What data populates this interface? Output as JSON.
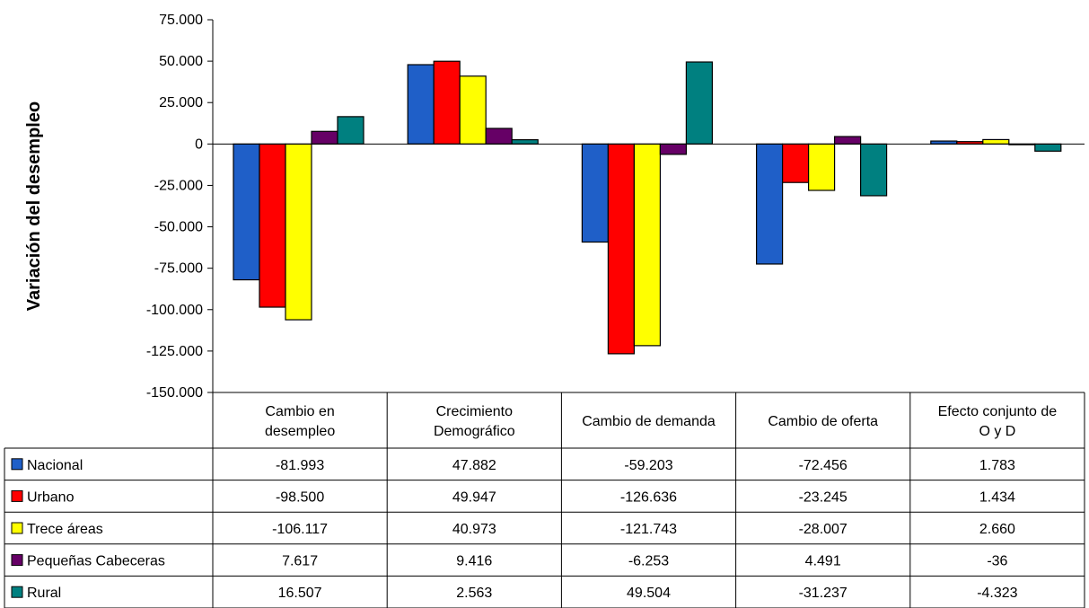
{
  "chart_data": {
    "type": "bar",
    "ylabel": "Variación del desempleo",
    "ylim": [
      -150000,
      75000
    ],
    "yticks": [
      75000,
      50000,
      25000,
      0,
      -25000,
      -50000,
      -75000,
      -100000,
      -125000,
      -150000
    ],
    "ytick_labels": [
      "75.000",
      "50.000",
      "25.000",
      "0",
      "-25.000",
      "-50.000",
      "-75.000",
      "-100.000",
      "-125.000",
      "-150.000"
    ],
    "categories": [
      [
        "Cambio en",
        "desempleo"
      ],
      [
        "Crecimiento",
        "Demográfico"
      ],
      [
        "Cambio de demanda"
      ],
      [
        "Cambio de oferta"
      ],
      [
        "Efecto conjunto de",
        "O y D"
      ]
    ],
    "series": [
      {
        "name": "Nacional",
        "color": "#1F5FC8",
        "values": [
          -81993,
          47882,
          -59203,
          -72456,
          1783
        ],
        "labels": [
          "-81.993",
          "47.882",
          "-59.203",
          "-72.456",
          "1.783"
        ]
      },
      {
        "name": "Urbano",
        "color": "#FF0000",
        "values": [
          -98500,
          49947,
          -126636,
          -23245,
          1434
        ],
        "labels": [
          "-98.500",
          "49.947",
          "-126.636",
          "-23.245",
          "1.434"
        ]
      },
      {
        "name": "Trece áreas",
        "color": "#FFFF00",
        "values": [
          -106117,
          40973,
          -121743,
          -28007,
          2660
        ],
        "labels": [
          "-106.117",
          "40.973",
          "-121.743",
          "-28.007",
          "2.660"
        ]
      },
      {
        "name": "Pequeñas Cabeceras",
        "color": "#660066",
        "values": [
          7617,
          9416,
          -6253,
          4491,
          -36
        ],
        "labels": [
          "7.617",
          "9.416",
          "-6.253",
          "4.491",
          "-36"
        ]
      },
      {
        "name": "Rural",
        "color": "#008080",
        "values": [
          16507,
          2563,
          49504,
          -31237,
          -4323
        ],
        "labels": [
          "16.507",
          "2.563",
          "49.504",
          "-31.237",
          "-4.323"
        ]
      }
    ],
    "grid": false,
    "legend": "data-table"
  }
}
